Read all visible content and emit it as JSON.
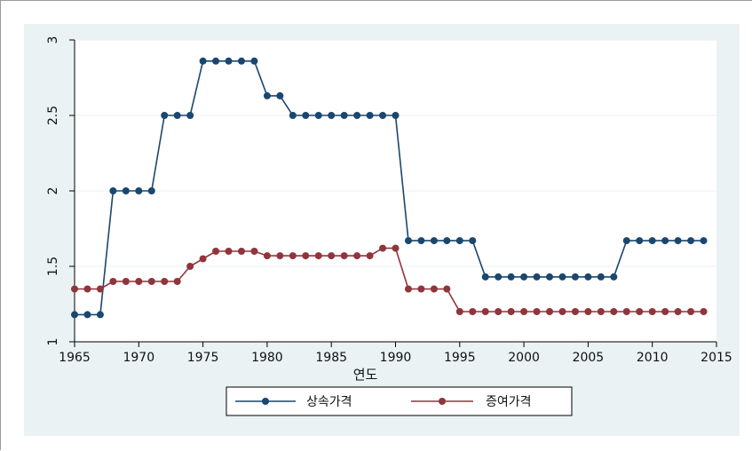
{
  "chart_data": {
    "type": "line",
    "title": "",
    "xlabel": "연도",
    "ylabel": "",
    "xlim": [
      1965,
      2015
    ],
    "ylim": [
      1,
      3
    ],
    "x_ticks": [
      "1965",
      "1970",
      "1975",
      "1980",
      "1985",
      "1990",
      "1995",
      "2000",
      "2005",
      "2010",
      "2015"
    ],
    "y_ticks": [
      "1",
      "1.5",
      "2",
      "2.5",
      "3"
    ],
    "grid": "horizontal",
    "legend_position": "bottom",
    "x": [
      1965,
      1966,
      1967,
      1968,
      1969,
      1970,
      1971,
      1972,
      1973,
      1974,
      1975,
      1976,
      1977,
      1978,
      1979,
      1980,
      1981,
      1982,
      1983,
      1984,
      1985,
      1986,
      1987,
      1988,
      1989,
      1990,
      1991,
      1992,
      1993,
      1994,
      1995,
      1996,
      1997,
      1998,
      1999,
      2000,
      2001,
      2002,
      2003,
      2004,
      2005,
      2006,
      2007,
      2008,
      2009,
      2010,
      2011,
      2012,
      2013,
      2014
    ],
    "series": [
      {
        "name": "상속가격",
        "color": "#1a476f",
        "values": [
          1.18,
          1.18,
          1.18,
          2.0,
          2.0,
          2.0,
          2.0,
          2.5,
          2.5,
          2.5,
          2.86,
          2.86,
          2.86,
          2.86,
          2.86,
          2.63,
          2.63,
          2.5,
          2.5,
          2.5,
          2.5,
          2.5,
          2.5,
          2.5,
          2.5,
          2.5,
          1.67,
          1.67,
          1.67,
          1.67,
          1.67,
          1.67,
          1.43,
          1.43,
          1.43,
          1.43,
          1.43,
          1.43,
          1.43,
          1.43,
          1.43,
          1.43,
          1.43,
          1.67,
          1.67,
          1.67,
          1.67,
          1.67,
          1.67,
          1.67
        ]
      },
      {
        "name": "증여가격",
        "color": "#90353b",
        "values": [
          1.35,
          1.35,
          1.35,
          1.4,
          1.4,
          1.4,
          1.4,
          1.4,
          1.4,
          1.5,
          1.55,
          1.6,
          1.6,
          1.6,
          1.6,
          1.57,
          1.57,
          1.57,
          1.57,
          1.57,
          1.57,
          1.57,
          1.57,
          1.57,
          1.62,
          1.62,
          1.35,
          1.35,
          1.35,
          1.35,
          1.2,
          1.2,
          1.2,
          1.2,
          1.2,
          1.2,
          1.2,
          1.2,
          1.2,
          1.2,
          1.2,
          1.2,
          1.2,
          1.2,
          1.2,
          1.2,
          1.2,
          1.2,
          1.2,
          1.2
        ]
      }
    ]
  },
  "colors": {
    "outer_background": "#eaf2f3",
    "plot_background": "#ffffff",
    "grid": "#eaf2f3"
  }
}
